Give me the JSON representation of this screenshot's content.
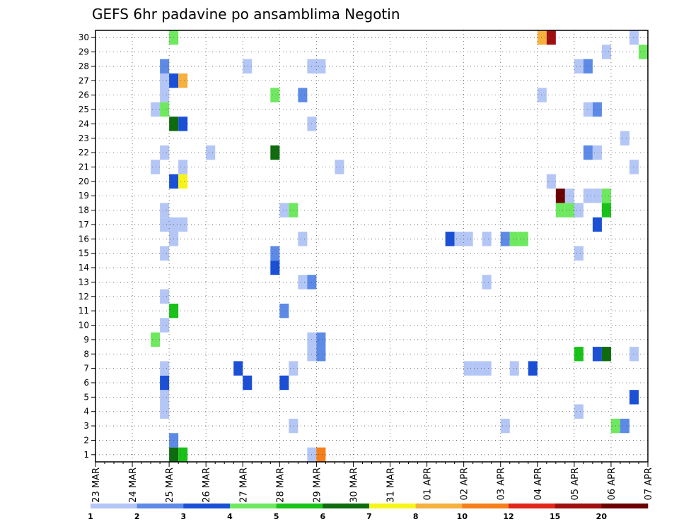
{
  "chart_data": {
    "type": "heatmap",
    "title": "GEFS 6hr padavine po ansamblima Negotin",
    "xlabel": "",
    "ylabel": "",
    "x_ticks": [
      "23 MAR",
      "24 MAR",
      "25 MAR",
      "26 MAR",
      "27 MAR",
      "28 MAR",
      "29 MAR",
      "30 MAR",
      "31 MAR",
      "01 APR",
      "02 APR",
      "03 APR",
      "04 APR",
      "05 APR",
      "06 APR",
      "07 APR"
    ],
    "y_ticks": [
      1,
      2,
      3,
      4,
      5,
      6,
      7,
      8,
      9,
      10,
      11,
      12,
      13,
      14,
      15,
      16,
      17,
      18,
      19,
      20,
      21,
      22,
      23,
      24,
      25,
      26,
      27,
      28,
      29,
      30
    ],
    "time_step_hours": 6,
    "xlim": [
      "23 MAR 00Z",
      "07 APR 00Z"
    ],
    "ylim": [
      0.5,
      30.5
    ],
    "grid": true,
    "colorbar": {
      "placement": "bottom",
      "labels": [
        "1",
        "2",
        "3",
        "4",
        "5",
        "6",
        "7",
        "8",
        "10",
        "12",
        "15",
        "20"
      ],
      "colors": [
        "#b3c6f5",
        "#5c8ae6",
        "#1a4fd6",
        "#6ee85f",
        "#19c219",
        "#0e6b0e",
        "#f5f51a",
        "#f5b03d",
        "#f57f1a",
        "#e0261a",
        "#a00f0f",
        "#6b0000"
      ]
    },
    "cells": [
      {
        "day": "25 MAR",
        "h": 0,
        "member": 0,
        "value": 1.5
      },
      {
        "day": "25 MAR",
        "h": 6,
        "member": 0,
        "value": 2.5
      },
      {
        "day": "25 MAR",
        "h": 0,
        "member": 1,
        "value": 6.5
      },
      {
        "day": "25 MAR",
        "h": 6,
        "member": 1,
        "value": 5.5
      },
      {
        "day": "25 MAR",
        "h": 0,
        "member": 2,
        "value": 2.5
      },
      {
        "day": "28 MAR",
        "h": 18,
        "member": 1,
        "value": 1.5
      },
      {
        "day": "29 MAR",
        "h": 0,
        "member": 1,
        "value": 10.5
      },
      {
        "day": "28 MAR",
        "h": 6,
        "member": 3,
        "value": 1.5
      },
      {
        "day": "03 APR",
        "h": 0,
        "member": 3,
        "value": 1.5
      },
      {
        "day": "06 APR",
        "h": 0,
        "member": 3,
        "value": 4.5
      },
      {
        "day": "06 APR",
        "h": 6,
        "member": 3,
        "value": 2.5
      },
      {
        "day": "07 APR",
        "h": 0,
        "member": 3,
        "value": 2.5
      },
      {
        "day": "24 MAR",
        "h": 18,
        "member": 4,
        "value": 1.5
      },
      {
        "day": "05 APR",
        "h": 0,
        "member": 4,
        "value": 1.5
      },
      {
        "day": "24 MAR",
        "h": 18,
        "member": 5,
        "value": 1.5
      },
      {
        "day": "06 APR",
        "h": 12,
        "member": 5,
        "value": 3.5
      },
      {
        "day": "24 MAR",
        "h": 18,
        "member": 6,
        "value": 3.5
      },
      {
        "day": "27 MAR",
        "h": 0,
        "member": 6,
        "value": 3.5
      },
      {
        "day": "28 MAR",
        "h": 0,
        "member": 6,
        "value": 3.5
      },
      {
        "day": "24 MAR",
        "h": 18,
        "member": 7,
        "value": 1.5
      },
      {
        "day": "26 MAR",
        "h": 18,
        "member": 7,
        "value": 3.5
      },
      {
        "day": "28 MAR",
        "h": 6,
        "member": 7,
        "value": 1.5
      },
      {
        "day": "02 APR",
        "h": 0,
        "member": 7,
        "value": 1.5
      },
      {
        "day": "02 APR",
        "h": 6,
        "member": 7,
        "value": 1.5
      },
      {
        "day": "02 APR",
        "h": 12,
        "member": 7,
        "value": 1.5
      },
      {
        "day": "03 APR",
        "h": 6,
        "member": 7,
        "value": 1.5
      },
      {
        "day": "03 APR",
        "h": 18,
        "member": 7,
        "value": 3.5
      },
      {
        "day": "28 MAR",
        "h": 18,
        "member": 8,
        "value": 1.5
      },
      {
        "day": "29 MAR",
        "h": 0,
        "member": 8,
        "value": 2.5
      },
      {
        "day": "05 APR",
        "h": 0,
        "member": 8,
        "value": 5.5
      },
      {
        "day": "05 APR",
        "h": 12,
        "member": 8,
        "value": 3.5
      },
      {
        "day": "05 APR",
        "h": 18,
        "member": 8,
        "value": 6.5
      },
      {
        "day": "06 APR",
        "h": 12,
        "member": 8,
        "value": 1.5
      },
      {
        "day": "24 MAR",
        "h": 12,
        "member": 9,
        "value": 4.5
      },
      {
        "day": "28 MAR",
        "h": 18,
        "member": 9,
        "value": 1.5
      },
      {
        "day": "29 MAR",
        "h": 0,
        "member": 9,
        "value": 2.5
      },
      {
        "day": "24 MAR",
        "h": 18,
        "member": 10,
        "value": 1.5
      },
      {
        "day": "25 MAR",
        "h": 0,
        "member": 11,
        "value": 5.5
      },
      {
        "day": "28 MAR",
        "h": 0,
        "member": 11,
        "value": 2.5
      },
      {
        "day": "24 MAR",
        "h": 18,
        "member": 12,
        "value": 1.5
      },
      {
        "day": "28 MAR",
        "h": 12,
        "member": 13,
        "value": 1.5
      },
      {
        "day": "28 MAR",
        "h": 18,
        "member": 13,
        "value": 2.5
      },
      {
        "day": "02 APR",
        "h": 12,
        "member": 13,
        "value": 1.5
      },
      {
        "day": "27 MAR",
        "h": 18,
        "member": 14,
        "value": 3.5
      },
      {
        "day": "24 MAR",
        "h": 18,
        "member": 15,
        "value": 1.5
      },
      {
        "day": "27 MAR",
        "h": 18,
        "member": 15,
        "value": 2.5
      },
      {
        "day": "05 APR",
        "h": 0,
        "member": 15,
        "value": 1.5
      },
      {
        "day": "25 MAR",
        "h": 0,
        "member": 16,
        "value": 1.5
      },
      {
        "day": "28 MAR",
        "h": 12,
        "member": 16,
        "value": 1.5
      },
      {
        "day": "01 APR",
        "h": 12,
        "member": 16,
        "value": 3.5
      },
      {
        "day": "01 APR",
        "h": 18,
        "member": 16,
        "value": 1.5
      },
      {
        "day": "02 APR",
        "h": 0,
        "member": 16,
        "value": 1.5
      },
      {
        "day": "02 APR",
        "h": 12,
        "member": 16,
        "value": 1.5
      },
      {
        "day": "03 APR",
        "h": 0,
        "member": 16,
        "value": 2.5
      },
      {
        "day": "03 APR",
        "h": 6,
        "member": 16,
        "value": 4.5
      },
      {
        "day": "03 APR",
        "h": 12,
        "member": 16,
        "value": 4.5
      },
      {
        "day": "24 MAR",
        "h": 18,
        "member": 17,
        "value": 1.5
      },
      {
        "day": "25 MAR",
        "h": 0,
        "member": 17,
        "value": 1.5
      },
      {
        "day": "25 MAR",
        "h": 6,
        "member": 17,
        "value": 1.5
      },
      {
        "day": "05 APR",
        "h": 12,
        "member": 17,
        "value": 3.5
      },
      {
        "day": "24 MAR",
        "h": 18,
        "member": 18,
        "value": 1.5
      },
      {
        "day": "28 MAR",
        "h": 0,
        "member": 18,
        "value": 1.5
      },
      {
        "day": "28 MAR",
        "h": 6,
        "member": 18,
        "value": 4.5
      },
      {
        "day": "04 APR",
        "h": 12,
        "member": 18,
        "value": 4.5
      },
      {
        "day": "04 APR",
        "h": 18,
        "member": 18,
        "value": 4.5
      },
      {
        "day": "05 APR",
        "h": 0,
        "member": 18,
        "value": 1.5
      },
      {
        "day": "05 APR",
        "h": 18,
        "member": 18,
        "value": 5.5
      },
      {
        "day": "04 APR",
        "h": 12,
        "member": 19,
        "value": 25
      },
      {
        "day": "04 APR",
        "h": 18,
        "member": 19,
        "value": 1.5
      },
      {
        "day": "05 APR",
        "h": 6,
        "member": 19,
        "value": 1.5
      },
      {
        "day": "05 APR",
        "h": 12,
        "member": 19,
        "value": 1.5
      },
      {
        "day": "05 APR",
        "h": 18,
        "member": 19,
        "value": 4.5
      },
      {
        "day": "25 MAR",
        "h": 0,
        "member": 20,
        "value": 3.5
      },
      {
        "day": "25 MAR",
        "h": 6,
        "member": 20,
        "value": 7.5
      },
      {
        "day": "04 APR",
        "h": 6,
        "member": 20,
        "value": 1.5
      },
      {
        "day": "24 MAR",
        "h": 12,
        "member": 21,
        "value": 1.5
      },
      {
        "day": "25 MAR",
        "h": 6,
        "member": 21,
        "value": 1.5
      },
      {
        "day": "29 MAR",
        "h": 12,
        "member": 21,
        "value": 1.5
      },
      {
        "day": "06 APR",
        "h": 12,
        "member": 21,
        "value": 1.5
      },
      {
        "day": "24 MAR",
        "h": 18,
        "member": 22,
        "value": 1.5
      },
      {
        "day": "26 MAR",
        "h": 0,
        "member": 22,
        "value": 1.5
      },
      {
        "day": "27 MAR",
        "h": 18,
        "member": 22,
        "value": 6.5
      },
      {
        "day": "05 APR",
        "h": 6,
        "member": 22,
        "value": 2.5
      },
      {
        "day": "05 APR",
        "h": 12,
        "member": 22,
        "value": 1.5
      },
      {
        "day": "06 APR",
        "h": 6,
        "member": 23,
        "value": 1.5
      },
      {
        "day": "07 APR",
        "h": 0,
        "member": 23,
        "value": 3.5
      },
      {
        "day": "25 MAR",
        "h": 0,
        "member": 24,
        "value": 6.5
      },
      {
        "day": "25 MAR",
        "h": 6,
        "member": 24,
        "value": 3.5
      },
      {
        "day": "28 MAR",
        "h": 18,
        "member": 24,
        "value": 1.5
      },
      {
        "day": "24 MAR",
        "h": 12,
        "member": 25,
        "value": 1.5
      },
      {
        "day": "24 MAR",
        "h": 18,
        "member": 25,
        "value": 4.5
      },
      {
        "day": "05 APR",
        "h": 6,
        "member": 25,
        "value": 1.5
      },
      {
        "day": "05 APR",
        "h": 12,
        "member": 25,
        "value": 2.5
      },
      {
        "day": "24 MAR",
        "h": 18,
        "member": 26,
        "value": 1.5
      },
      {
        "day": "27 MAR",
        "h": 18,
        "member": 26,
        "value": 4.5
      },
      {
        "day": "28 MAR",
        "h": 12,
        "member": 26,
        "value": 2.5
      },
      {
        "day": "04 APR",
        "h": 0,
        "member": 26,
        "value": 1.5
      },
      {
        "day": "24 MAR",
        "h": 18,
        "member": 27,
        "value": 1.5
      },
      {
        "day": "25 MAR",
        "h": 0,
        "member": 27,
        "value": 3.5
      },
      {
        "day": "25 MAR",
        "h": 6,
        "member": 27,
        "value": 9
      },
      {
        "day": "24 MAR",
        "h": 18,
        "member": 28,
        "value": 2.5
      },
      {
        "day": "27 MAR",
        "h": 0,
        "member": 28,
        "value": 1.5
      },
      {
        "day": "28 MAR",
        "h": 18,
        "member": 28,
        "value": 1.5
      },
      {
        "day": "29 MAR",
        "h": 0,
        "member": 28,
        "value": 1.5
      },
      {
        "day": "05 APR",
        "h": 0,
        "member": 28,
        "value": 1.5
      },
      {
        "day": "05 APR",
        "h": 6,
        "member": 28,
        "value": 2.5
      },
      {
        "day": "05 APR",
        "h": 18,
        "member": 29,
        "value": 1.5
      },
      {
        "day": "06 APR",
        "h": 18,
        "member": 29,
        "value": 4.5
      },
      {
        "day": "25 MAR",
        "h": 0,
        "member": 30,
        "value": 4.5
      },
      {
        "day": "04 APR",
        "h": 0,
        "member": 30,
        "value": 9
      },
      {
        "day": "04 APR",
        "h": 6,
        "member": 30,
        "value": 17
      },
      {
        "day": "06 APR",
        "h": 12,
        "member": 30,
        "value": 1.5
      }
    ]
  }
}
